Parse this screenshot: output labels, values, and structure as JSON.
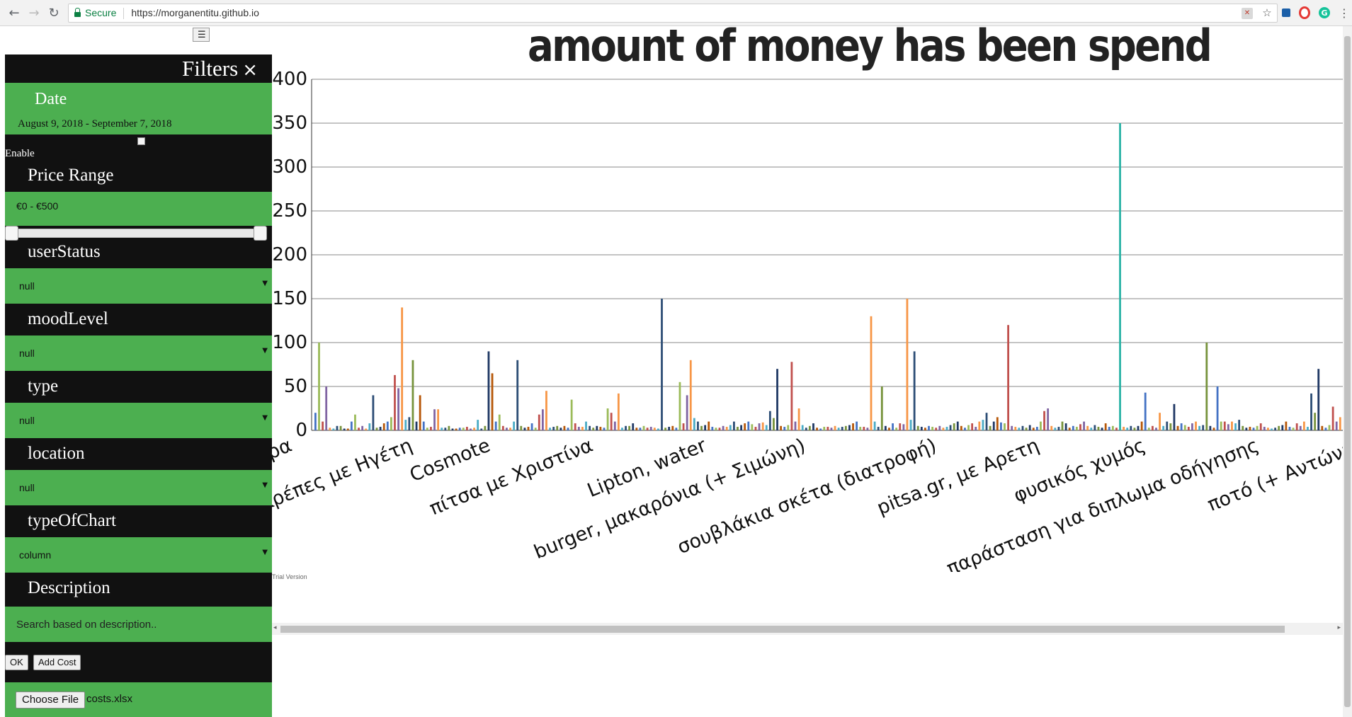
{
  "browser": {
    "secure_label": "Secure",
    "url": "https://morganentitu.github.io"
  },
  "page": {
    "menu_glyph": "☰"
  },
  "sidebar": {
    "title": "Filters",
    "close_glyph": "×",
    "date": {
      "label": "Date",
      "range": "August 9, 2018 - September 7, 2018",
      "enable_label": "Enable"
    },
    "price": {
      "label": "Price Range",
      "value": "€0 - €500",
      "min_fraction": 0.0,
      "max_fraction": 1.0
    },
    "user_status": {
      "label": "userStatus",
      "value": "null"
    },
    "mood_level": {
      "label": "moodLevel",
      "value": "null"
    },
    "type": {
      "label": "type",
      "value": "null"
    },
    "location": {
      "label": "location",
      "value": "null"
    },
    "type_of_chart": {
      "label": "typeOfChart",
      "value": "column"
    },
    "description": {
      "label": "Description",
      "placeholder": "Search based on description.."
    },
    "ok_label": "OK",
    "add_cost_label": "Add Cost",
    "choose_file_label": "Choose File",
    "file_name": "costs.xlsx"
  },
  "chart_footer": {
    "trial": "Trial Version"
  },
  "chart_data": {
    "type": "bar",
    "title": "amount of money has been spend",
    "ylim": [
      0,
      400
    ],
    "y_ticks": [
      0,
      50,
      100,
      150,
      200,
      250,
      300,
      350,
      400
    ],
    "grid": true,
    "categories": [
      "ιτέρα",
      "Κρέπες με Ηγέτη",
      "Cosmote",
      "πίτσα με Χριστίνα",
      "Lipton, water",
      "burger, μακαρόνια (+ Σιμώνη)",
      "σουβλάκια σκέτα (διατροφή)",
      "pitsa.gr,  με Αρετη",
      "φυσικός χυμός",
      "παράσταση για διπλωμα οδήγησης",
      "ποτό (+ Αντώνη)"
    ],
    "peak_values": [
      100,
      140,
      90,
      45,
      150,
      80,
      150,
      120,
      350,
      100,
      70
    ],
    "bar_values": [
      20,
      100,
      10,
      50,
      3,
      2,
      5,
      5,
      2,
      2,
      10,
      18,
      3,
      5,
      2,
      8,
      40,
      3,
      4,
      8,
      10,
      15,
      63,
      48,
      140,
      12,
      15,
      80,
      10,
      40,
      10,
      3,
      4,
      24,
      24,
      3,
      3,
      5,
      2,
      2,
      3,
      3,
      4,
      2,
      3,
      12,
      2,
      5,
      90,
      65,
      10,
      18,
      5,
      3,
      3,
      10,
      80,
      5,
      3,
      4,
      8,
      3,
      18,
      24,
      45,
      3,
      4,
      5,
      3,
      5,
      3,
      35,
      8,
      4,
      4,
      10,
      5,
      3,
      5,
      4,
      3,
      25,
      20,
      10,
      42,
      3,
      5,
      5,
      8,
      3,
      3,
      5,
      3,
      4,
      3,
      2,
      150,
      3,
      4,
      5,
      3,
      55,
      8,
      40,
      80,
      14,
      10,
      5,
      6,
      10,
      4,
      3,
      3,
      5,
      4,
      6,
      10,
      4,
      6,
      8,
      10,
      7,
      4,
      8,
      9,
      6,
      22,
      14,
      70,
      5,
      4,
      6,
      78,
      10,
      25,
      6,
      3,
      5,
      8,
      3,
      2,
      4,
      4,
      3,
      5,
      3,
      4,
      5,
      6,
      8,
      10,
      4,
      4,
      3,
      130,
      10,
      4,
      50,
      5,
      3,
      8,
      3,
      8,
      7,
      150,
      12,
      90,
      5,
      4,
      3,
      5,
      4,
      3,
      5,
      3,
      4,
      6,
      8,
      10,
      5,
      3,
      6,
      8,
      4,
      10,
      12,
      20,
      5,
      10,
      15,
      9,
      8,
      120,
      5,
      4,
      3,
      5,
      3,
      6,
      3,
      4,
      10,
      22,
      25,
      5,
      3,
      4,
      10,
      8,
      3,
      5,
      4,
      7,
      10,
      5,
      3,
      6,
      4,
      3,
      8,
      4,
      5,
      3,
      350,
      4,
      3,
      5,
      3,
      5,
      10,
      43,
      3,
      5,
      3,
      20,
      5,
      10,
      8,
      30,
      5,
      8,
      6,
      4,
      8,
      10,
      5,
      6,
      100,
      5,
      3,
      50,
      10,
      10,
      7,
      10,
      8,
      12,
      5,
      3,
      4,
      3,
      5,
      8,
      4,
      3,
      2,
      3,
      5,
      6,
      10,
      4,
      3,
      8,
      5,
      10,
      4,
      42,
      20,
      70,
      5,
      3,
      6,
      27,
      10,
      15
    ]
  }
}
